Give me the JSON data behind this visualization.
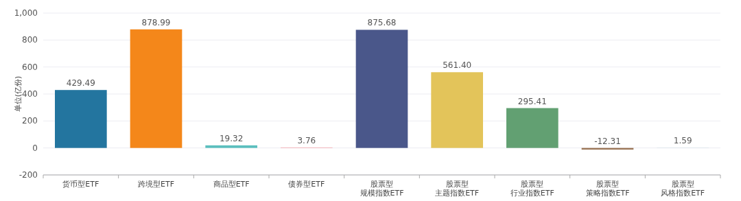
{
  "chart_data": {
    "type": "bar",
    "ylabel": "单位(亿份)",
    "categories": [
      "货币型ETF",
      "跨境型ETF",
      "商品型ETF",
      "债券型ETF",
      "股票型规模指数ETF",
      "股票型主题指数ETF",
      "股票型行业指数ETF",
      "股票型策略指数ETF",
      "股票型风格指数ETF"
    ],
    "values": [
      429.49,
      878.99,
      19.32,
      3.76,
      875.68,
      561.4,
      295.41,
      -12.31,
      1.59
    ],
    "colors": [
      "#23759f",
      "#f4871a",
      "#5bbfbe",
      "#f2a0a6",
      "#4a578a",
      "#e3c45a",
      "#62a072",
      "#9c7758",
      "#cfdce6"
    ],
    "value_labels": [
      "429.49",
      "878.99",
      "19.32",
      "3.76",
      "875.68",
      "561.40",
      "295.41",
      "-12.31",
      "1.59"
    ],
    "ylim": [
      -200,
      1000
    ],
    "yticks": [
      -200,
      0,
      200,
      400,
      600,
      800,
      {
        "value": 1000,
        "label": "1,000"
      }
    ],
    "grid": "y"
  }
}
